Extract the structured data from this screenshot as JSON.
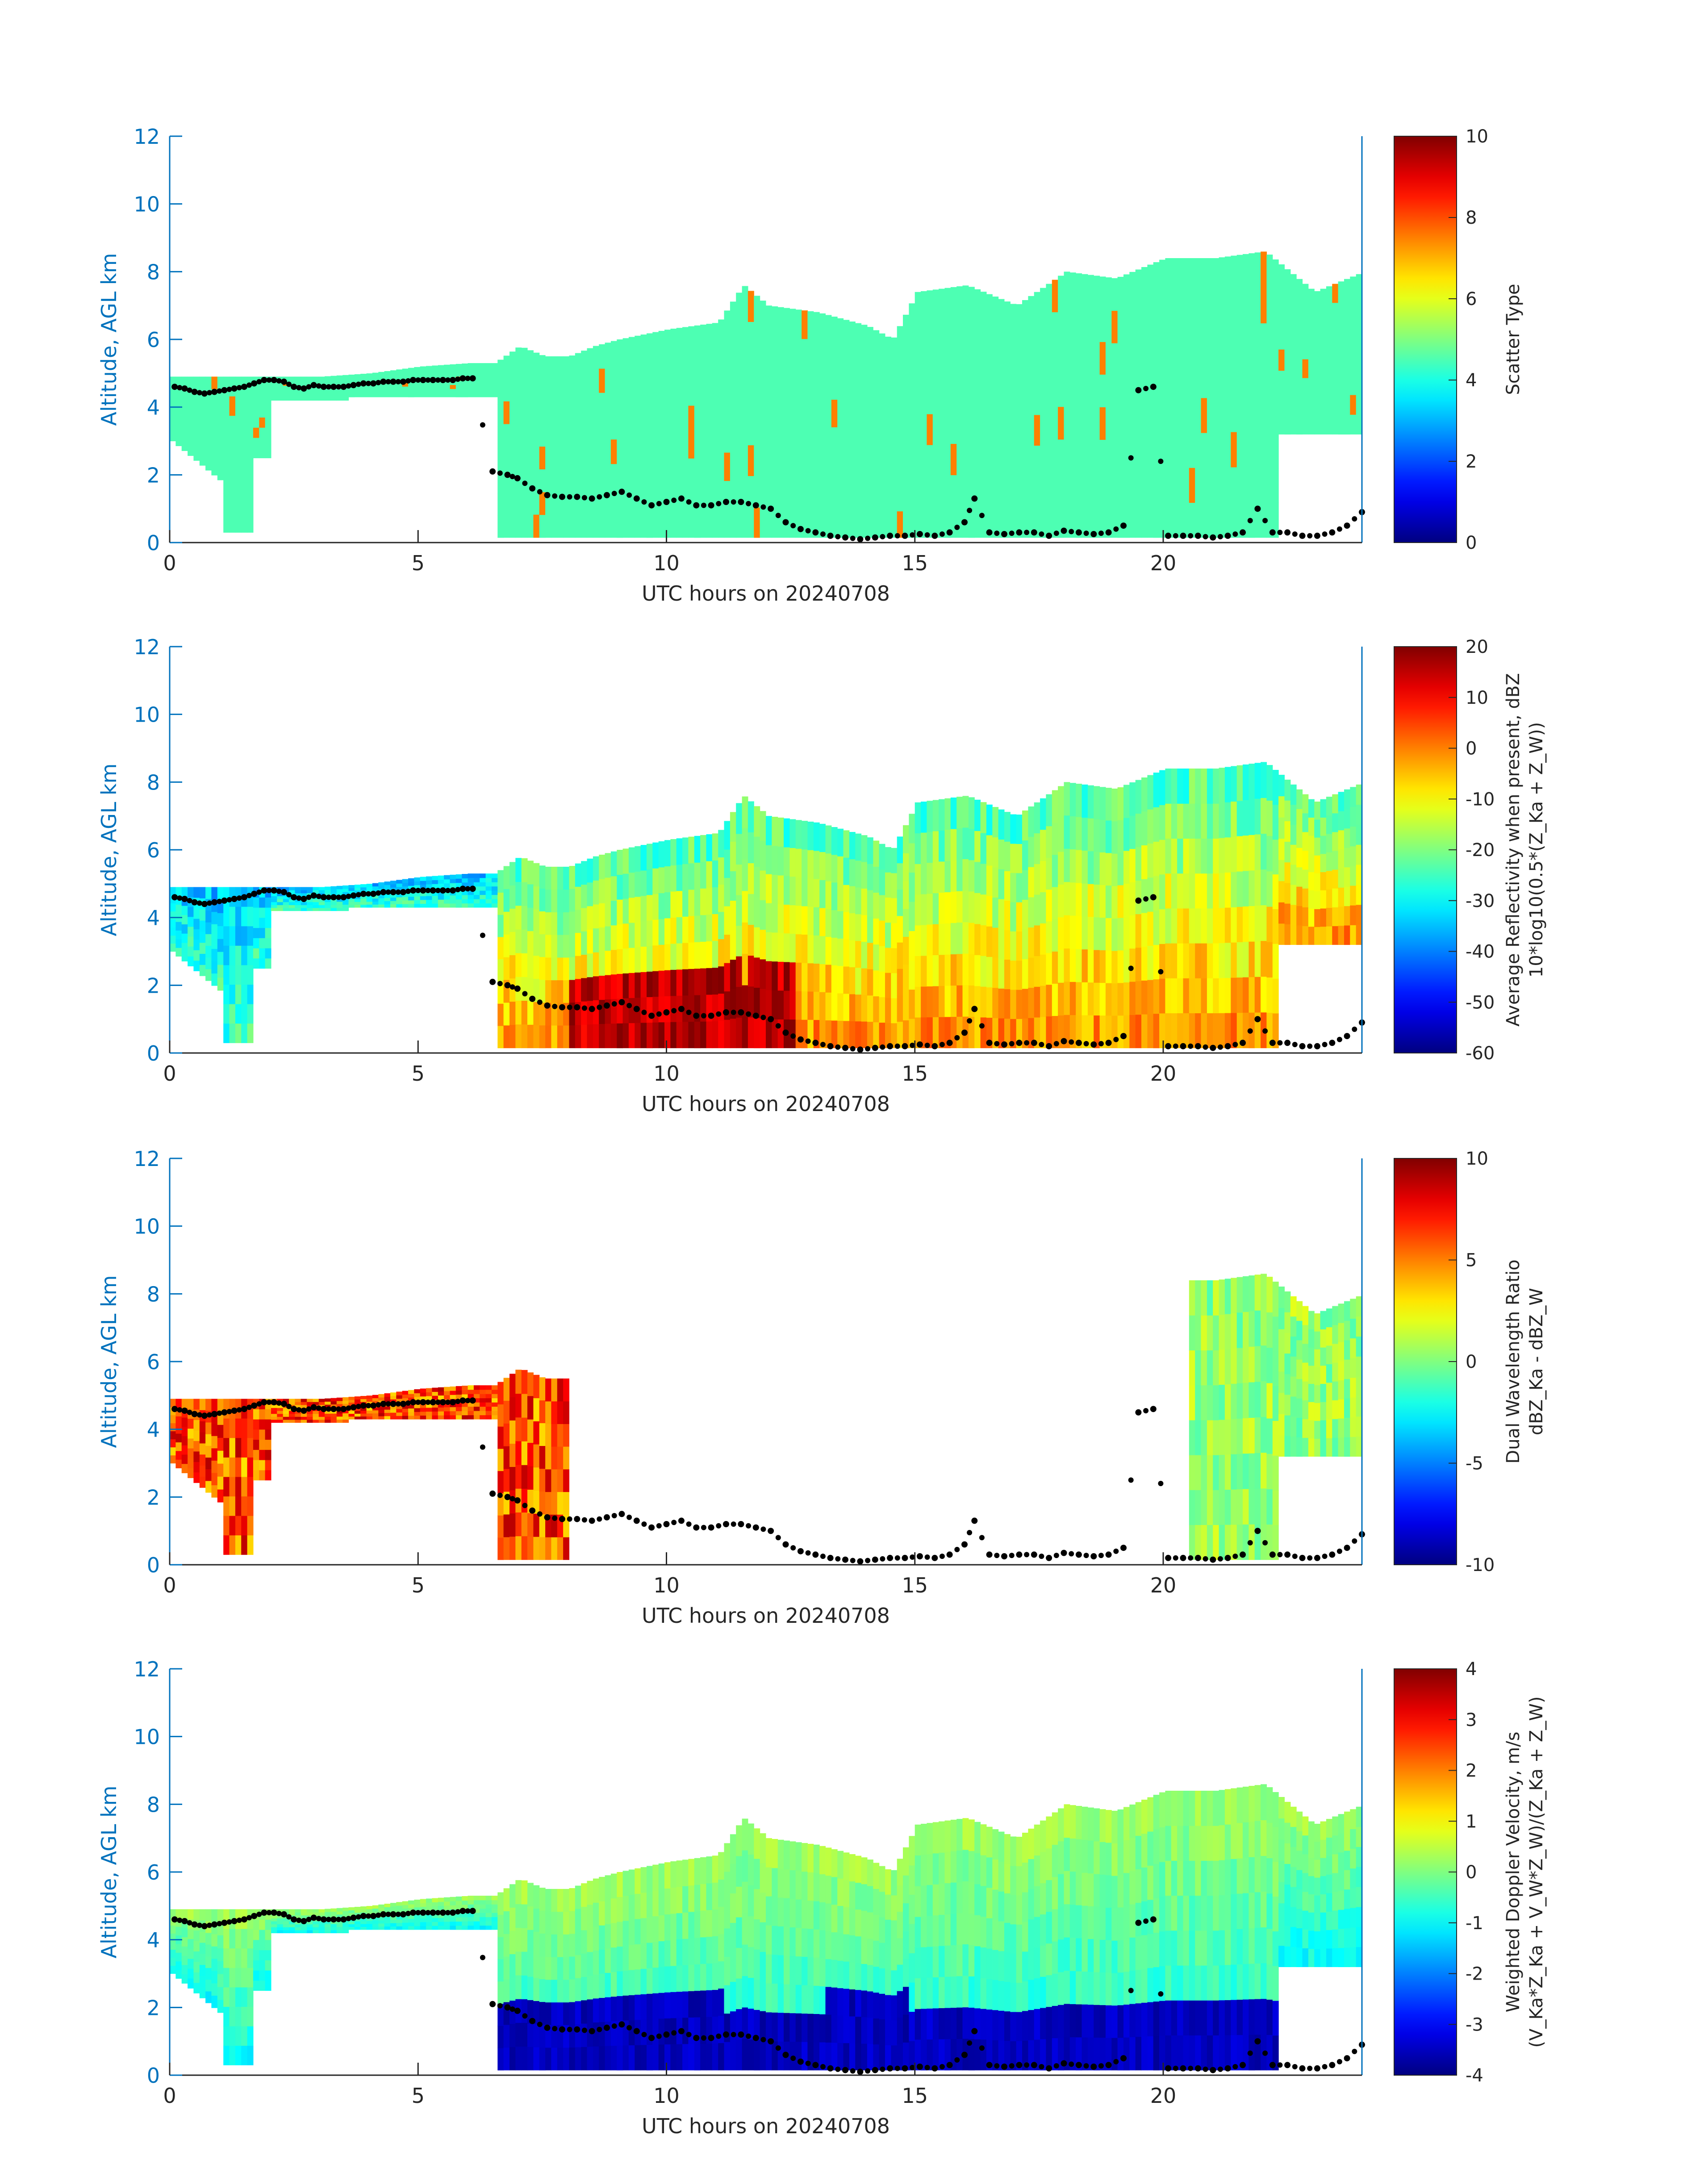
{
  "figure": {
    "colors": {
      "axis_blue": "#0072bd",
      "axis_black": "#262626",
      "cloud_dots": "#000000"
    }
  },
  "chart_data": [
    {
      "type": "heatmap",
      "title": "",
      "xlabel": "UTC hours on 20240708",
      "ylabel": "Altitude, AGL km",
      "xlim": [
        0,
        24
      ],
      "ylim": [
        0,
        12
      ],
      "xticks": [
        0,
        5,
        10,
        15,
        20
      ],
      "yticks": [
        0,
        2,
        4,
        6,
        8,
        10,
        12
      ],
      "colorbar": {
        "label_lines": [
          "Scatter Type"
        ],
        "range": [
          0,
          10
        ],
        "ticks": [
          0,
          2,
          4,
          6,
          8,
          10
        ],
        "colormap": "jet"
      },
      "fields": "uniform",
      "dominant_value": 4.5
    },
    {
      "type": "heatmap",
      "title": "",
      "xlabel": "UTC hours on 20240708",
      "ylabel": "Altitude, AGL km",
      "xlim": [
        0,
        24
      ],
      "ylim": [
        0,
        12
      ],
      "xticks": [
        0,
        5,
        10,
        15,
        20
      ],
      "yticks": [
        0,
        2,
        4,
        6,
        8,
        10,
        12
      ],
      "colorbar": {
        "label_lines": [
          "Average Reflectivity when present, dBZ",
          "10*log10(0.5*(Z_Ka + Z_W))"
        ],
        "range": [
          -60,
          20
        ],
        "ticks": [
          -60,
          -50,
          -40,
          -30,
          -20,
          -10,
          0,
          10,
          20
        ],
        "colormap": "jet"
      },
      "fields": "reflectivity"
    },
    {
      "type": "heatmap",
      "title": "",
      "xlabel": "UTC hours on 20240708",
      "ylabel": "Altitude, AGL km",
      "xlim": [
        0,
        24
      ],
      "ylim": [
        0,
        12
      ],
      "xticks": [
        0,
        5,
        10,
        15,
        20
      ],
      "yticks": [
        0,
        2,
        4,
        6,
        8,
        10,
        12
      ],
      "colorbar": {
        "label_lines": [
          "Dual Wavelength Ratio",
          "dBZ_Ka - dBZ_W"
        ],
        "range": [
          -10,
          10
        ],
        "ticks": [
          -10,
          -5,
          0,
          5,
          10
        ],
        "colormap": "jet"
      },
      "fields": "dwr"
    },
    {
      "type": "heatmap",
      "title": "",
      "xlabel": "UTC hours on 20240708",
      "ylabel": "Altitude, AGL km",
      "xlim": [
        0,
        24
      ],
      "ylim": [
        0,
        12
      ],
      "xticks": [
        0,
        5,
        10,
        15,
        20
      ],
      "yticks": [
        0,
        2,
        4,
        6,
        8,
        10,
        12
      ],
      "colorbar": {
        "label_lines": [
          "Weighted Doppler Velocity, m/s",
          "(V_Ka*Z_Ka + V_W*Z_W)/(Z_Ka + Z_W)"
        ],
        "range": [
          -4,
          4
        ],
        "ticks": [
          -4,
          -3,
          -2,
          -1,
          0,
          1,
          2,
          3,
          4
        ],
        "colormap": "jet"
      },
      "fields": "velocity"
    }
  ],
  "cloud_base_points": {
    "description": "black dots overlaid on each panel (hour, km)",
    "x": [
      0.1,
      0.3,
      0.5,
      0.7,
      0.9,
      1.1,
      1.3,
      1.5,
      1.7,
      1.9,
      2.1,
      2.3,
      2.5,
      2.7,
      2.9,
      3.1,
      3.3,
      3.5,
      3.7,
      3.9,
      4.1,
      4.3,
      4.5,
      4.7,
      4.9,
      5.1,
      5.3,
      5.5,
      5.7,
      5.9,
      6.1,
      6.5,
      6.8,
      7.0,
      7.3,
      7.6,
      7.9,
      8.2,
      8.5,
      8.8,
      9.1,
      9.4,
      9.7,
      10.0,
      10.3,
      10.6,
      10.9,
      11.2,
      11.5,
      11.8,
      12.1,
      12.4,
      12.7,
      13.0,
      13.3,
      13.6,
      13.9,
      14.2,
      14.5,
      14.8,
      15.1,
      15.4,
      15.7,
      16.0,
      16.2,
      16.5,
      16.8,
      17.1,
      17.4,
      17.7,
      18.0,
      18.3,
      18.6,
      18.9,
      19.2,
      19.5,
      19.8,
      20.1,
      20.4,
      20.7,
      21.0,
      21.3,
      21.6,
      21.9,
      22.2,
      22.5,
      22.8,
      23.1,
      23.4,
      23.7,
      24.0
    ],
    "y": [
      4.6,
      4.55,
      4.45,
      4.4,
      4.45,
      4.5,
      4.55,
      4.6,
      4.7,
      4.8,
      4.8,
      4.75,
      4.6,
      4.55,
      4.65,
      4.6,
      4.6,
      4.6,
      4.65,
      4.7,
      4.7,
      4.75,
      4.75,
      4.75,
      4.8,
      4.8,
      4.8,
      4.8,
      4.8,
      4.85,
      4.85,
      2.1,
      2.0,
      1.9,
      1.6,
      1.4,
      1.35,
      1.35,
      1.3,
      1.4,
      1.5,
      1.3,
      1.1,
      1.2,
      1.3,
      1.1,
      1.1,
      1.2,
      1.2,
      1.1,
      1.0,
      0.6,
      0.4,
      0.3,
      0.2,
      0.15,
      0.1,
      0.15,
      0.2,
      0.2,
      0.25,
      0.2,
      0.3,
      0.6,
      1.3,
      0.3,
      0.25,
      0.3,
      0.3,
      0.2,
      0.35,
      0.3,
      0.25,
      0.3,
      0.5,
      4.5,
      4.6,
      0.2,
      0.2,
      0.2,
      0.15,
      0.2,
      0.3,
      1.0,
      0.3,
      0.3,
      0.2,
      0.2,
      0.3,
      0.5,
      0.9
    ]
  }
}
